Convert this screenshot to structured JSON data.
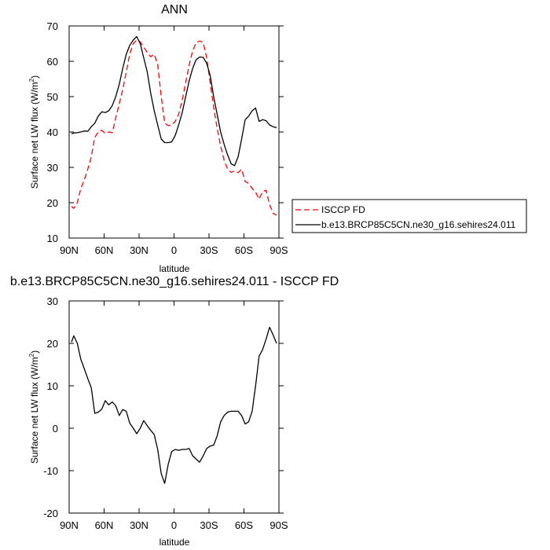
{
  "chart_data": [
    {
      "type": "line",
      "title": "ANN",
      "xlabel": "latitude",
      "ylabel": "Surface net LW flux (W/m",
      "ylabel_sup": "2",
      "ylabel_end": ")",
      "ylim": [
        10,
        70
      ],
      "xlim": [
        90,
        -90
      ],
      "xticks": [
        90,
        60,
        30,
        0,
        -30,
        -60,
        -90
      ],
      "xticklabels": [
        "90N",
        "60N",
        "30N",
        "0",
        "30S",
        "60S",
        "90S"
      ],
      "yticks": [
        10,
        20,
        30,
        40,
        50,
        60,
        70
      ],
      "yticklabels": [
        "10",
        "20",
        "30",
        "40",
        "50",
        "60",
        "70"
      ],
      "legend": "right",
      "series": [
        {
          "name": "ISCCP FD",
          "color": "#ff0000",
          "style": "dashed",
          "x": [
            88,
            86,
            83,
            80,
            77,
            74,
            71,
            68,
            65,
            62,
            59,
            56,
            53,
            50,
            47,
            44,
            41,
            38,
            35,
            32,
            29,
            26,
            23,
            20,
            17,
            14,
            11,
            8,
            5,
            2,
            -1,
            -4,
            -7,
            -10,
            -13,
            -16,
            -19,
            -22,
            -25,
            -28,
            -31,
            -34,
            -37,
            -40,
            -43,
            -46,
            -49,
            -52,
            -55,
            -58,
            -61,
            -64,
            -67,
            -70,
            -73,
            -76,
            -79,
            -82,
            -85,
            -88
          ],
          "values": [
            19.0,
            18.4,
            20.0,
            24.0,
            26.5,
            29.5,
            33.0,
            38.5,
            40.0,
            40.5,
            39.6,
            40.0,
            39.8,
            44.0,
            48.0,
            52.0,
            57.0,
            62.0,
            65.0,
            66.0,
            65.5,
            64.0,
            62.5,
            61.3,
            62.0,
            59.0,
            50.0,
            42.5,
            41.8,
            42.0,
            43.0,
            45.0,
            49.0,
            54.0,
            59.0,
            63.0,
            65.3,
            65.7,
            65.4,
            61.0,
            54.0,
            47.0,
            41.0,
            36.0,
            32.0,
            29.5,
            28.6,
            29.0,
            28.5,
            29.5,
            26.0,
            25.5,
            24.0,
            23.0,
            21.0,
            23.2,
            23.5,
            19.5,
            17.0,
            16.5
          ]
        },
        {
          "name": "b.e13.BRCP85C5CN.ne30_g16.sehires24.011",
          "color": "#000000",
          "style": "solid",
          "x": [
            88,
            86,
            83,
            80,
            77,
            74,
            71,
            68,
            65,
            62,
            59,
            56,
            53,
            50,
            47,
            44,
            41,
            38,
            35,
            32,
            29,
            26,
            23,
            20,
            17,
            14,
            11,
            8,
            5,
            2,
            -1,
            -4,
            -7,
            -10,
            -13,
            -16,
            -19,
            -22,
            -25,
            -28,
            -31,
            -34,
            -37,
            -40,
            -43,
            -46,
            -49,
            -52,
            -55,
            -58,
            -61,
            -64,
            -67,
            -70,
            -73,
            -76,
            -79,
            -82,
            -85,
            -88
          ],
          "values": [
            39.5,
            39.7,
            39.8,
            40.0,
            40.3,
            40.2,
            41.5,
            42.5,
            44.5,
            45.7,
            45.5,
            46.0,
            47.5,
            50.0,
            53.5,
            58.0,
            62.0,
            64.5,
            66.0,
            67.0,
            65.0,
            61.0,
            57.0,
            51.0,
            46.0,
            42.0,
            38.0,
            37.0,
            37.0,
            37.2,
            39.0,
            42.0,
            45.5,
            50.0,
            54.5,
            58.0,
            60.5,
            61.2,
            61.1,
            59.5,
            56.0,
            50.0,
            45.0,
            40.0,
            36.5,
            33.5,
            31.0,
            30.5,
            33.0,
            38.0,
            43.5,
            44.5,
            46.0,
            46.8,
            43.0,
            43.5,
            43.2,
            42.0,
            41.5,
            41.2
          ]
        }
      ]
    },
    {
      "type": "line",
      "title": "b.e13.BRCP85C5CN.ne30_g16.sehires24.011 - ISCCP FD",
      "xlabel": "latitude",
      "ylabel": "Surface net LW flux (W/m",
      "ylabel_sup": "2",
      "ylabel_end": ")",
      "ylim": [
        -20,
        30
      ],
      "xlim": [
        90,
        -90
      ],
      "xticks": [
        90,
        60,
        30,
        0,
        -30,
        -60,
        -90
      ],
      "xticklabels": [
        "90N",
        "60N",
        "30N",
        "0",
        "30S",
        "60S",
        "90S"
      ],
      "yticks": [
        -20,
        -10,
        0,
        10,
        20,
        30
      ],
      "yticklabels": [
        "-20",
        "-10",
        "0",
        "10",
        "20",
        "30"
      ],
      "series": [
        {
          "color": "#000000",
          "style": "solid",
          "x": [
            88,
            86,
            83,
            80,
            77,
            74,
            71,
            68,
            65,
            62,
            59,
            56,
            53,
            50,
            47,
            44,
            41,
            38,
            35,
            32,
            29,
            26,
            23,
            20,
            17,
            14,
            11,
            8,
            5,
            2,
            -1,
            -4,
            -7,
            -10,
            -13,
            -16,
            -19,
            -22,
            -25,
            -28,
            -31,
            -34,
            -37,
            -40,
            -43,
            -46,
            -49,
            -52,
            -55,
            -58,
            -61,
            -64,
            -67,
            -70,
            -73,
            -76,
            -79,
            -82,
            -85,
            -88
          ],
          "values": [
            20.3,
            21.8,
            20.0,
            16.3,
            14.0,
            11.7,
            9.5,
            3.5,
            3.8,
            4.5,
            6.5,
            5.5,
            6.2,
            5.3,
            3.0,
            4.4,
            4.0,
            1.2,
            0.0,
            -1.3,
            0.0,
            1.8,
            0.6,
            -0.5,
            -1.5,
            -5.0,
            -10.7,
            -13.0,
            -8.5,
            -5.5,
            -5.0,
            -5.2,
            -5.0,
            -5.0,
            -4.8,
            -6.5,
            -7.3,
            -8.0,
            -6.5,
            -4.8,
            -4.2,
            -4.0,
            -1.8,
            1.5,
            3.0,
            3.8,
            4.0,
            4.0,
            4.0,
            3.0,
            1.0,
            1.5,
            4.0,
            10.0,
            17.0,
            18.5,
            21.0,
            23.8,
            22.0,
            20.0
          ]
        }
      ]
    }
  ]
}
